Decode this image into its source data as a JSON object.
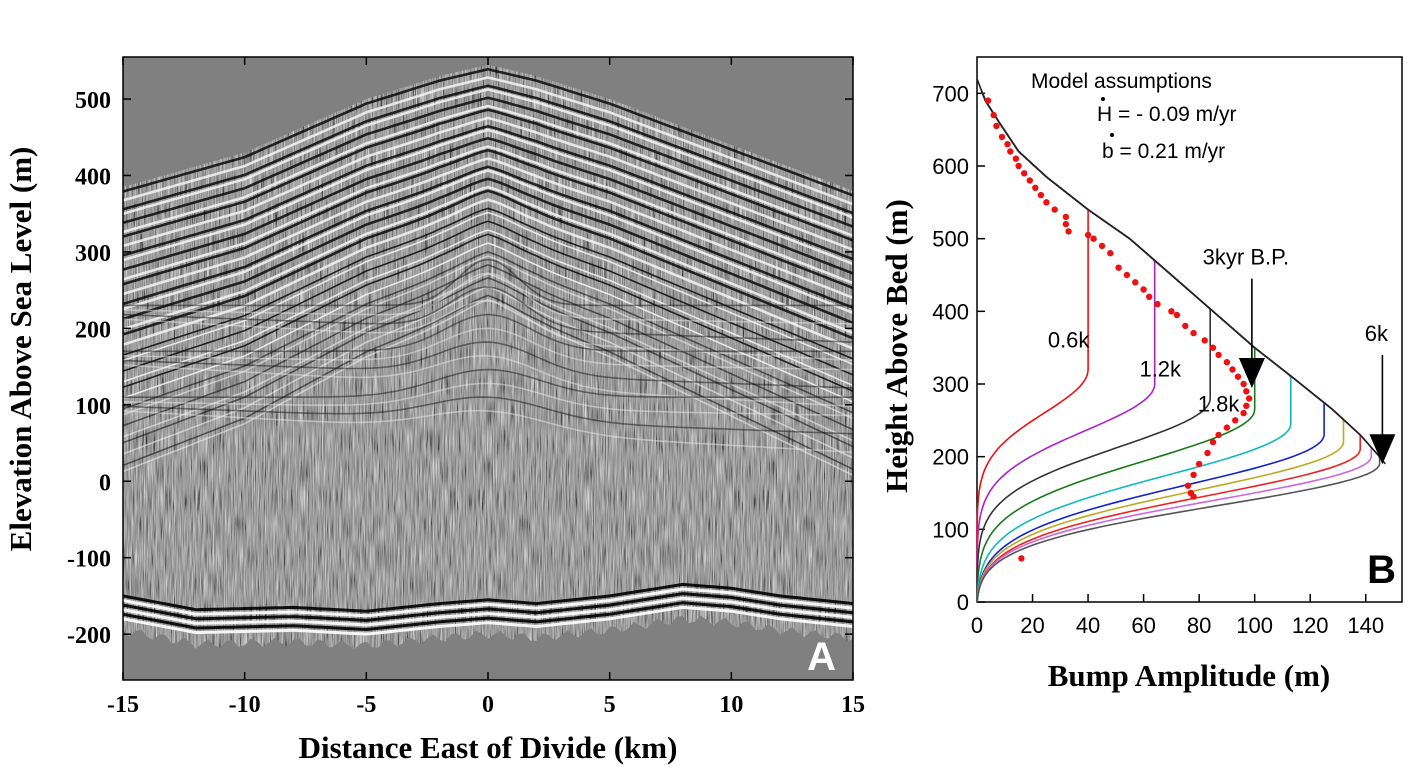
{
  "chart_data": [
    {
      "type": "heatmap",
      "panel_label": "A",
      "xlabel": "Distance East of Divide (km)",
      "ylabel": "Elevation Above Sea Level (m)",
      "xlim": [
        -15,
        15
      ],
      "ylim": [
        -260,
        555
      ],
      "xticks": [
        -15,
        -10,
        -5,
        0,
        5,
        10,
        15
      ],
      "xtick_labels": [
        "-15",
        "-10",
        "-5",
        "0",
        "5",
        "10",
        "15"
      ],
      "yticks": [
        500,
        400,
        300,
        200,
        100,
        0,
        -100,
        -200
      ],
      "ytick_labels": [
        "500",
        "400",
        "300",
        "200",
        "100",
        "0",
        "-100",
        "-200"
      ],
      "surface": {
        "x": [
          -15,
          -10,
          -5,
          -2,
          0,
          2,
          5,
          10,
          15
        ],
        "y": [
          385,
          430,
          500,
          530,
          545,
          530,
          500,
          440,
          380
        ]
      },
      "bed": {
        "x": [
          -15,
          -12,
          -8,
          -5,
          -2,
          0,
          2,
          5,
          8,
          10,
          12,
          15
        ],
        "y": [
          -150,
          -168,
          -165,
          -170,
          -160,
          -155,
          -160,
          -150,
          -135,
          -140,
          -150,
          -160
        ]
      },
      "background_color": "#808080"
    },
    {
      "type": "line",
      "panel_label": "B",
      "xlabel": "Bump Amplitude (m)",
      "ylabel": "Height Above Bed (m)",
      "xlim": [
        0,
        150
      ],
      "ylim": [
        0,
        750
      ],
      "xticks": [
        0,
        20,
        40,
        60,
        80,
        100,
        120,
        140
      ],
      "xtick_labels": [
        "0",
        "20",
        "40",
        "60",
        "80",
        "100",
        "120",
        "140"
      ],
      "yticks": [
        0,
        100,
        200,
        300,
        400,
        500,
        600,
        700
      ],
      "ytick_labels": [
        "0",
        "100",
        "200",
        "300",
        "400",
        "500",
        "600",
        "700"
      ],
      "assumptions": {
        "title": "Model assumptions",
        "h_label": "H",
        "h_value": " = - 0.09 m/yr",
        "b_label": "b",
        "b_value": " = 0.21 m/yr"
      },
      "envelope": {
        "color": "#222222",
        "x": [
          0,
          3,
          8,
          15,
          25,
          40,
          55,
          70,
          85,
          100,
          115,
          128,
          138,
          145,
          147
        ],
        "y": [
          720,
          690,
          660,
          620,
          585,
          540,
          500,
          450,
          400,
          350,
          305,
          265,
          230,
          200,
          190
        ]
      },
      "series": [
        {
          "label": "0.6k",
          "color": "#ee1111",
          "amp": 40,
          "peak": 320,
          "lw": 100,
          "up": 200,
          "bot": 5
        },
        {
          "label": "1.2k",
          "color": "#aa22cc",
          "amp": 64,
          "peak": 300,
          "lw": 108,
          "up": 140,
          "bot": 5
        },
        {
          "label": "1.8k",
          "color": "#333333",
          "amp": 84,
          "peak": 280,
          "lw": 112,
          "up": 100,
          "bot": 5
        },
        {
          "label": "",
          "color": "#1a7a1a",
          "amp": 100,
          "peak": 265,
          "lw": 118,
          "up": 75,
          "bot": 4
        },
        {
          "label": "",
          "color": "#11bbbb",
          "amp": 113,
          "peak": 245,
          "lw": 118,
          "up": 60,
          "bot": 4
        },
        {
          "label": "",
          "color": "#1122cc",
          "amp": 125,
          "peak": 230,
          "lw": 115,
          "up": 50,
          "bot": 3
        },
        {
          "label": "",
          "color": "#bbaa22",
          "amp": 132,
          "peak": 220,
          "lw": 110,
          "up": 42,
          "bot": 3
        },
        {
          "label": "",
          "color": "#ee2222",
          "amp": 138,
          "peak": 210,
          "lw": 106,
          "up": 36,
          "bot": 2
        },
        {
          "label": "",
          "color": "#cc66dd",
          "amp": 142,
          "peak": 200,
          "lw": 100,
          "up": 30,
          "bot": 2
        },
        {
          "label": "",
          "color": "#555555",
          "amp": 145,
          "peak": 190,
          "lw": 95,
          "up": 28,
          "bot": 2
        }
      ],
      "curve_labels": [
        {
          "text": "0.6k",
          "x": 33,
          "y": 350
        },
        {
          "text": "1.2k",
          "x": 66,
          "y": 310
        },
        {
          "text": "1.8k",
          "x": 87,
          "y": 262
        }
      ],
      "observations": {
        "color": "#ee1111",
        "x": [
          4,
          6,
          7,
          9,
          11,
          12,
          14,
          15,
          17,
          19,
          21,
          23,
          25,
          28,
          32,
          32,
          33,
          40,
          42,
          45,
          48,
          51,
          54,
          57,
          60,
          62,
          65,
          70,
          72,
          75,
          78,
          82,
          85,
          87,
          90,
          92,
          94,
          96,
          97,
          98,
          97,
          96,
          93,
          90,
          87,
          85,
          83,
          80,
          78,
          76,
          16,
          77,
          78
        ],
        "y": [
          690,
          670,
          655,
          640,
          630,
          620,
          610,
          600,
          590,
          580,
          570,
          560,
          550,
          540,
          530,
          520,
          510,
          505,
          500,
          490,
          480,
          460,
          450,
          440,
          430,
          420,
          410,
          400,
          395,
          380,
          370,
          360,
          350,
          340,
          330,
          320,
          310,
          300,
          290,
          280,
          270,
          260,
          250,
          240,
          230,
          220,
          205,
          190,
          175,
          160,
          60,
          150,
          145
        ]
      },
      "arrows": [
        {
          "label": "3kyr B.P.",
          "x": 99,
          "y_from": 445,
          "y_to": 300
        },
        {
          "label": "6k",
          "x": 146,
          "y_from": 340,
          "y_to": 195
        }
      ]
    }
  ]
}
